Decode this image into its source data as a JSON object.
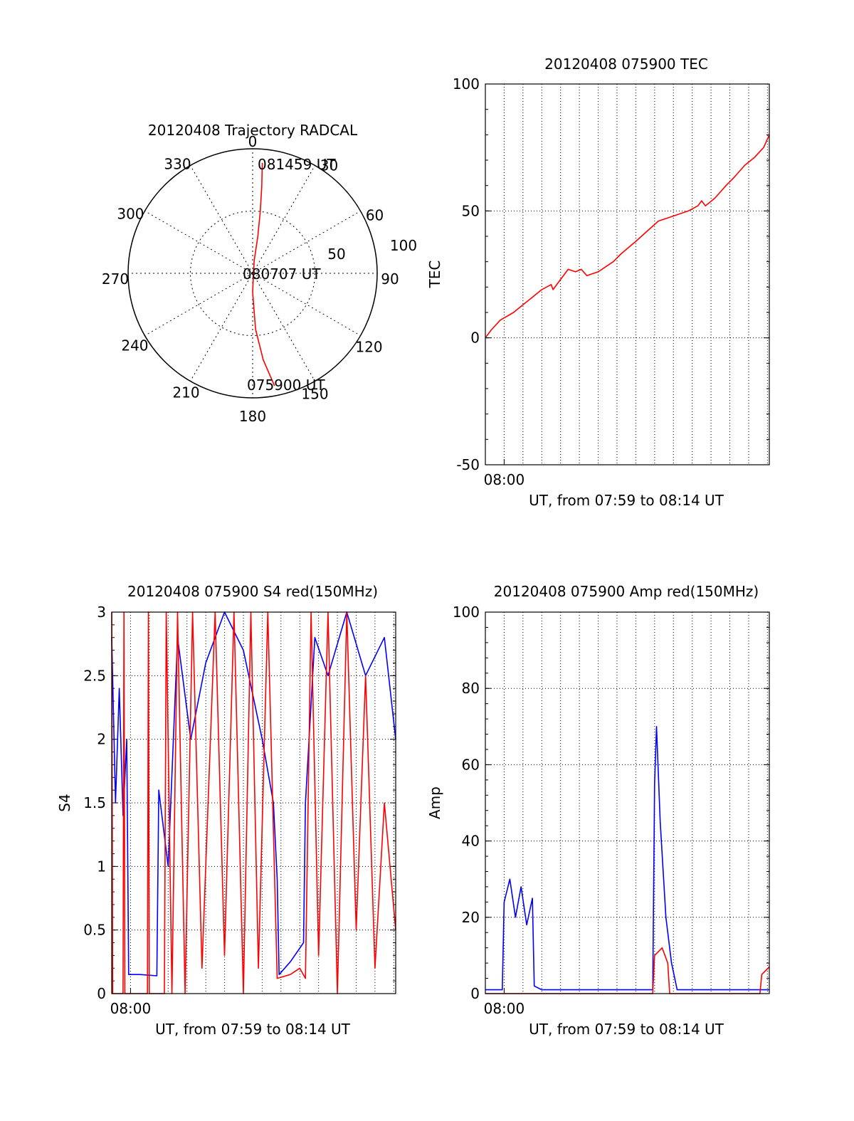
{
  "chart_data": [
    {
      "type": "polar",
      "title": "20120408 Trajectory RADCAL",
      "azimuth_labels": [
        "0",
        "30",
        "60",
        "90",
        "120",
        "150",
        "180",
        "210",
        "240",
        "270",
        "300",
        "330"
      ],
      "radial_labels": [
        "50",
        "100"
      ],
      "rlim": [
        0,
        100
      ],
      "grid": true,
      "trajectory_color": "#ff0000",
      "trajectory": [
        {
          "az": 169,
          "r": 92
        },
        {
          "az": 173,
          "r": 70
        },
        {
          "az": 177,
          "r": 45
        },
        {
          "az": 180,
          "r": 15
        },
        {
          "az": 7,
          "r": 10
        },
        {
          "az": 8,
          "r": 30
        },
        {
          "az": 7,
          "r": 50
        },
        {
          "az": 6,
          "r": 70
        },
        {
          "az": 5,
          "r": 89
        }
      ],
      "annotations": [
        "081459 UT",
        "080707 UT",
        "075900 UT"
      ]
    },
    {
      "type": "line",
      "title": "20120408 075900 TEC",
      "xlabel": "UT, from 07:59 to 08:14 UT",
      "ylabel": "TEC",
      "xlim": [
        0,
        15.1
      ],
      "ylim": [
        -50,
        100
      ],
      "xticks": [
        {
          "x": 1,
          "label": "08:00"
        }
      ],
      "yticks": [
        "-50",
        "0",
        "50",
        "100"
      ],
      "grid": true,
      "series": [
        {
          "color": "#ff0000",
          "points": [
            [
              0,
              0
            ],
            [
              0.3,
              3
            ],
            [
              0.8,
              7
            ],
            [
              1.5,
              10
            ],
            [
              2,
              13
            ],
            [
              2.5,
              16
            ],
            [
              3,
              19
            ],
            [
              3.5,
              21
            ],
            [
              3.6,
              19
            ],
            [
              4,
              23
            ],
            [
              4.4,
              27
            ],
            [
              4.8,
              26
            ],
            [
              5.1,
              27
            ],
            [
              5.4,
              24.5
            ],
            [
              6,
              26
            ],
            [
              6.8,
              30
            ],
            [
              7.2,
              33
            ],
            [
              8,
              38
            ],
            [
              8.6,
              42
            ],
            [
              9.2,
              46
            ],
            [
              10,
              48
            ],
            [
              10.8,
              50
            ],
            [
              11.3,
              52
            ],
            [
              11.5,
              54
            ],
            [
              11.7,
              52
            ],
            [
              12.2,
              55
            ],
            [
              12.8,
              60
            ],
            [
              13.2,
              63
            ],
            [
              13.8,
              68
            ],
            [
              14.3,
              71
            ],
            [
              14.8,
              75
            ],
            [
              15.1,
              80
            ]
          ]
        }
      ]
    },
    {
      "type": "line",
      "title": "20120408 075900 S4 red(150MHz)",
      "xlabel": "UT, from 07:59 to 08:14 UT",
      "ylabel": "S4",
      "xlim": [
        0,
        15.1
      ],
      "ylim": [
        0,
        3
      ],
      "xticks": [
        {
          "x": 1,
          "label": "08:00"
        }
      ],
      "yticks": [
        "0",
        "0.5",
        "1",
        "1.5",
        "2",
        "2.5",
        "3"
      ],
      "grid": true,
      "series": [
        {
          "color": "#0000ff",
          "points": [
            [
              0,
              2.8
            ],
            [
              0.2,
              1.5
            ],
            [
              0.4,
              2.4
            ],
            [
              0.6,
              1.4
            ],
            [
              0.8,
              2.0
            ],
            [
              0.9,
              0.15
            ],
            [
              1.5,
              0.15
            ],
            [
              2.4,
              0.14
            ],
            [
              2.5,
              1.6
            ],
            [
              3.0,
              1.0
            ],
            [
              3.5,
              2.8
            ],
            [
              4.2,
              2.0
            ],
            [
              5.0,
              2.6
            ],
            [
              6.0,
              3.0
            ],
            [
              7.0,
              2.7
            ],
            [
              8.0,
              2.0
            ],
            [
              8.6,
              1.5
            ],
            [
              8.8,
              0.9
            ],
            [
              8.9,
              0.15
            ],
            [
              9.5,
              0.25
            ],
            [
              10.2,
              0.4
            ],
            [
              10.3,
              1.5
            ],
            [
              10.8,
              2.8
            ],
            [
              11.5,
              2.5
            ],
            [
              12.5,
              3.0
            ],
            [
              13.5,
              2.5
            ],
            [
              14.5,
              2.8
            ],
            [
              15.1,
              2.0
            ]
          ]
        },
        {
          "color": "#ff0000",
          "points": [
            [
              0,
              3.0
            ],
            [
              0.05,
              0
            ],
            [
              0.6,
              0
            ],
            [
              0.65,
              3.0
            ],
            [
              0.7,
              0
            ],
            [
              1.9,
              0
            ],
            [
              1.95,
              3.0
            ],
            [
              2.0,
              0
            ],
            [
              2.8,
              0
            ],
            [
              2.9,
              3.0
            ],
            [
              3.2,
              0
            ],
            [
              3.5,
              3.0
            ],
            [
              3.9,
              0
            ],
            [
              4.3,
              3.0
            ],
            [
              4.8,
              0.2
            ],
            [
              5.5,
              3.0
            ],
            [
              6.0,
              0.3
            ],
            [
              6.5,
              3.0
            ],
            [
              7.0,
              0
            ],
            [
              7.4,
              3.0
            ],
            [
              7.8,
              0.2
            ],
            [
              8.3,
              3.0
            ],
            [
              8.8,
              0.12
            ],
            [
              9.5,
              0.15
            ],
            [
              10.0,
              0.2
            ],
            [
              10.3,
              0.12
            ],
            [
              10.6,
              3.0
            ],
            [
              11.0,
              0.3
            ],
            [
              11.5,
              3.0
            ],
            [
              12.0,
              0
            ],
            [
              12.5,
              3.0
            ],
            [
              13.0,
              0.5
            ],
            [
              13.5,
              2.5
            ],
            [
              14.0,
              0.2
            ],
            [
              14.5,
              1.5
            ],
            [
              15.1,
              0.5
            ]
          ]
        }
      ]
    },
    {
      "type": "line",
      "title": "20120408 075900 Amp red(150MHz)",
      "xlabel": "UT, from 07:59 to 08:14 UT",
      "ylabel": "Amp",
      "xlim": [
        0,
        15.1
      ],
      "ylim": [
        0,
        100
      ],
      "xticks": [
        {
          "x": 1,
          "label": "08:00"
        }
      ],
      "yticks": [
        "0",
        "20",
        "40",
        "60",
        "80",
        "100"
      ],
      "grid": true,
      "series": [
        {
          "color": "#0000ff",
          "points": [
            [
              0,
              1
            ],
            [
              0.9,
              1
            ],
            [
              1.0,
              24
            ],
            [
              1.3,
              30
            ],
            [
              1.6,
              20
            ],
            [
              1.9,
              28
            ],
            [
              2.2,
              18
            ],
            [
              2.5,
              25
            ],
            [
              2.6,
              2
            ],
            [
              3.0,
              1
            ],
            [
              5.0,
              1
            ],
            [
              7.0,
              1
            ],
            [
              8.9,
              1
            ],
            [
              9.0,
              55
            ],
            [
              9.1,
              70
            ],
            [
              9.3,
              45
            ],
            [
              9.6,
              20
            ],
            [
              9.9,
              8
            ],
            [
              10.2,
              1
            ],
            [
              12.0,
              1
            ],
            [
              14.0,
              1
            ],
            [
              15.1,
              1
            ]
          ]
        },
        {
          "color": "#ff0000",
          "points": [
            [
              0,
              0
            ],
            [
              8.9,
              0
            ],
            [
              9.0,
              10
            ],
            [
              9.4,
              12
            ],
            [
              9.7,
              8
            ],
            [
              9.8,
              0
            ],
            [
              14.6,
              0
            ],
            [
              14.7,
              5
            ],
            [
              15.1,
              7
            ]
          ]
        }
      ]
    }
  ]
}
